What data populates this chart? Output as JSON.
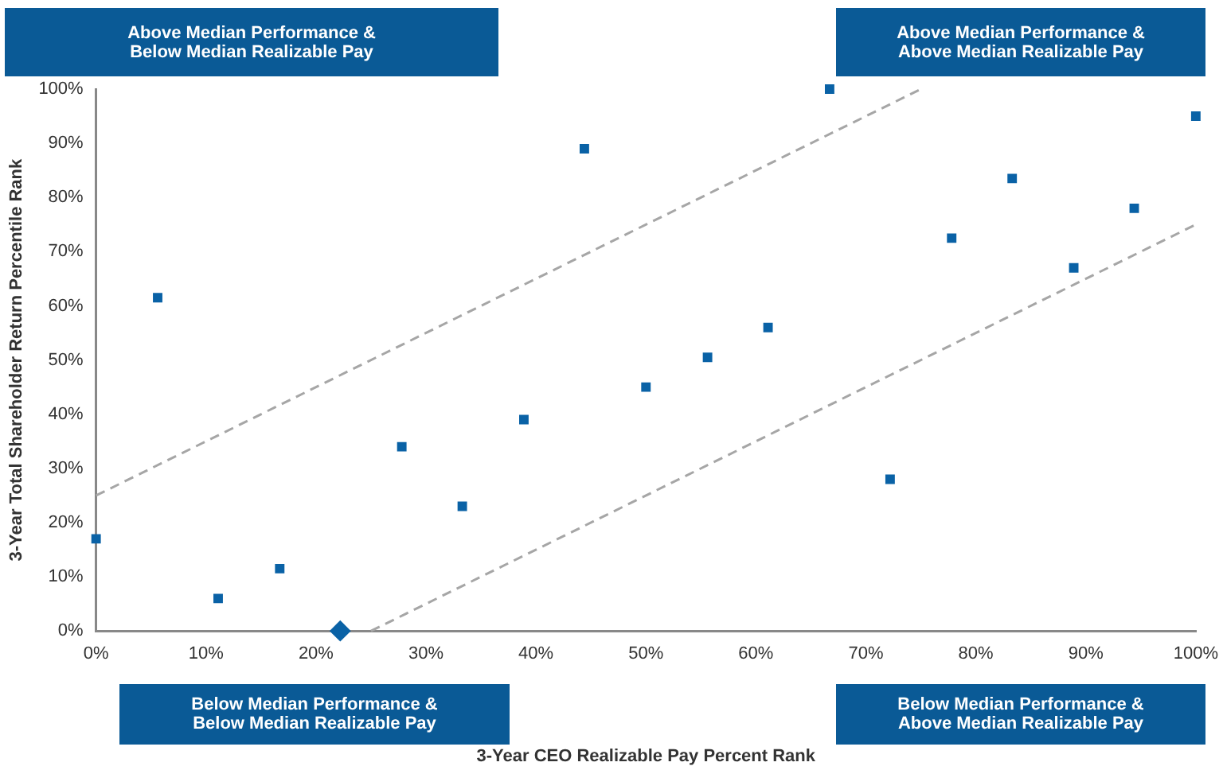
{
  "chart_data": {
    "type": "scatter",
    "xlabel": "3-Year CEO Realizable Pay Percent Rank",
    "ylabel": "3-Year Total Shareholder Return Percentile Rank",
    "annotations": [
      "Above Median Performance & Below Median Realizable Pay",
      "Above Median Performance & Above Median Realizable Pay",
      "Below Median Performance & Below Median Realizable Pay",
      "Below Median Performance & Above Median Realizable Pay"
    ],
    "xlim": [
      0,
      100
    ],
    "ylim": [
      0,
      100
    ],
    "xticks": [
      {
        "value": 0,
        "label": "0%"
      },
      {
        "value": 10,
        "label": "10%"
      },
      {
        "value": 20,
        "label": "20%"
      },
      {
        "value": 30,
        "label": "30%"
      },
      {
        "value": 40,
        "label": "40%"
      },
      {
        "value": 50,
        "label": "50%"
      },
      {
        "value": 60,
        "label": "60%"
      },
      {
        "value": 70,
        "label": "70%"
      },
      {
        "value": 80,
        "label": "80%"
      },
      {
        "value": 90,
        "label": "90%"
      },
      {
        "value": 100,
        "label": "100%"
      }
    ],
    "yticks": [
      {
        "value": 0,
        "label": "0%"
      },
      {
        "value": 10,
        "label": "10%"
      },
      {
        "value": 20,
        "label": "20%"
      },
      {
        "value": 30,
        "label": "30%"
      },
      {
        "value": 40,
        "label": "40%"
      },
      {
        "value": 50,
        "label": "50%"
      },
      {
        "value": 60,
        "label": "60%"
      },
      {
        "value": 70,
        "label": "70%"
      },
      {
        "value": 80,
        "label": "80%"
      },
      {
        "value": 90,
        "label": "90%"
      },
      {
        "value": 100,
        "label": "100%"
      }
    ],
    "grid": false,
    "legend": false,
    "marker": "square",
    "series": [
      {
        "color": "#0a62a6",
        "x": [
          0,
          5.6,
          11.1,
          16.7,
          27.8,
          33.3,
          38.9,
          44.4,
          50,
          55.6,
          61.1,
          66.7,
          72.2,
          77.8,
          83.3,
          88.9,
          94.4,
          100
        ],
        "values": [
          17,
          61.5,
          6,
          11.5,
          34,
          23,
          39,
          89,
          45,
          50.5,
          56,
          100,
          28,
          72.5,
          83.5,
          67,
          78,
          95
        ]
      },
      {
        "color": "#0a62a6",
        "marker": "diamond",
        "x": [
          22.2
        ],
        "values": [
          0
        ]
      },
      {
        "type": "line",
        "color": "#a6a6a6",
        "line_style": "dashed",
        "marker": "none",
        "x": [
          0,
          75
        ],
        "values": [
          25,
          100
        ]
      },
      {
        "type": "line",
        "color": "#a6a6a6",
        "line_style": "dashed",
        "marker": "none",
        "x": [
          25,
          100
        ],
        "values": [
          0,
          75
        ]
      }
    ]
  }
}
